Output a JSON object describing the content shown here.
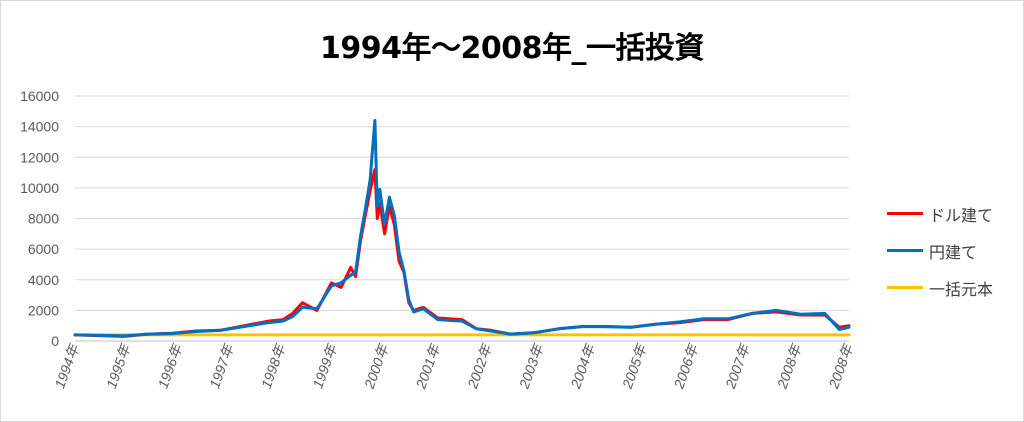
{
  "chart_data": {
    "type": "line",
    "title": "1994年～2008年_一括投資",
    "xlabel": "",
    "ylabel": "",
    "ylim": [
      0,
      16000
    ],
    "y_ticks": [
      "0",
      "2000",
      "4000",
      "6000",
      "8000",
      "10000",
      "12000",
      "14000",
      "16000"
    ],
    "x_ticks": [
      "1994年",
      "1995年",
      "1996年",
      "1997年",
      "1998年",
      "1999年",
      "2000年",
      "2001年",
      "2002年",
      "2003年",
      "2004年",
      "2005年",
      "2006年",
      "2007年",
      "2008年",
      "2008年"
    ],
    "grid": true,
    "legend_position": "right",
    "x": [
      1994.0,
      1995.0,
      1995.5,
      1996.0,
      1996.5,
      1997.0,
      1997.5,
      1998.0,
      1998.3,
      1998.5,
      1998.7,
      1999.0,
      1999.3,
      1999.5,
      1999.7,
      1999.8,
      1999.9,
      2000.0,
      2000.1,
      2000.15,
      2000.2,
      2000.25,
      2000.3,
      2000.4,
      2000.5,
      2000.6,
      2000.7,
      2000.8,
      2000.9,
      2001.0,
      2001.2,
      2001.5,
      2002.0,
      2002.3,
      2002.6,
      2003.0,
      2003.5,
      2004.0,
      2004.5,
      2005.0,
      2005.5,
      2006.0,
      2006.5,
      2007.0,
      2007.5,
      2008.0,
      2008.5,
      2009.0,
      2009.5,
      2009.8,
      2010.0
    ],
    "series": [
      {
        "name": "ドル建て",
        "color": "#ff0000",
        "values": [
          400,
          300,
          450,
          500,
          650,
          700,
          1000,
          1300,
          1400,
          1800,
          2500,
          2000,
          3800,
          3500,
          4800,
          4200,
          6500,
          8200,
          9800,
          10500,
          11200,
          8000,
          9000,
          7000,
          8800,
          7600,
          5200,
          4500,
          2500,
          2000,
          2200,
          1500,
          1400,
          800,
          700,
          450,
          550,
          800,
          950,
          950,
          900,
          1100,
          1200,
          1400,
          1400,
          1800,
          1900,
          1700,
          1700,
          900,
          1000
        ]
      },
      {
        "name": "円建て",
        "color": "#0070c0",
        "values": [
          400,
          330,
          450,
          480,
          620,
          690,
          950,
          1200,
          1300,
          1600,
          2200,
          2100,
          3600,
          3800,
          4300,
          4500,
          6800,
          8600,
          10500,
          12500,
          14400,
          8800,
          9900,
          7600,
          9400,
          8200,
          5800,
          4600,
          2700,
          1900,
          2100,
          1400,
          1300,
          800,
          650,
          450,
          540,
          800,
          950,
          930,
          900,
          1100,
          1250,
          1450,
          1450,
          1800,
          2000,
          1750,
          1800,
          750,
          900
        ]
      },
      {
        "name": "一括元本",
        "color": "#ffc000",
        "values": [
          400,
          400,
          400,
          400,
          400,
          400,
          400,
          400,
          400,
          400,
          400,
          400,
          400,
          400,
          400,
          400,
          400,
          400,
          400,
          400,
          400,
          400,
          400,
          400,
          400,
          400,
          400,
          400,
          400,
          400,
          400,
          400,
          400,
          400,
          400,
          400,
          400,
          400,
          400,
          400,
          400,
          400,
          400,
          400,
          400,
          400,
          400,
          400,
          400,
          400,
          400
        ]
      }
    ]
  }
}
